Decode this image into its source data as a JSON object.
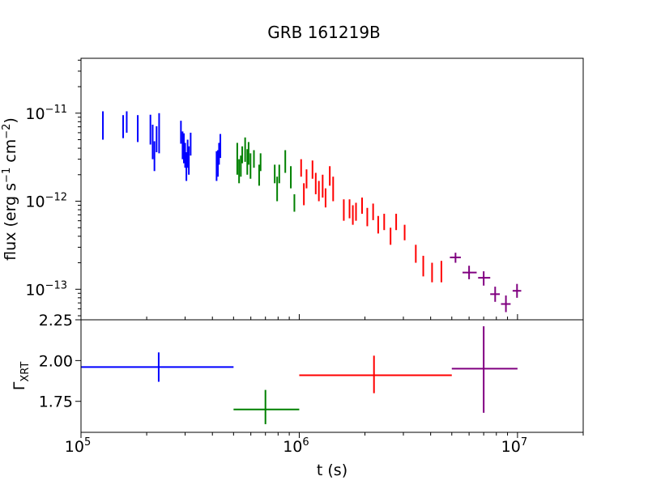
{
  "title": "GRB 161219B",
  "colors": {
    "seg1": "#0000ff",
    "seg2": "#008000",
    "seg3": "#ff0000",
    "seg4": "#800080",
    "axis": "#000000"
  },
  "chart_data": [
    {
      "type": "scatter",
      "panel": "top",
      "title": "GRB 161219B",
      "xlabel": "",
      "ylabel": "flux (erg s^-1 cm^-2)",
      "xscale": "log",
      "yscale": "log",
      "xlim": [
        100000,
        20000000
      ],
      "ylim": [
        4.5e-14,
        4.2e-11
      ],
      "ytick_labels": [
        "10^-11",
        "10^-12",
        "10^-13"
      ],
      "series": [
        {
          "color": "#0000ff",
          "points": [
            [
              126000,
              7.2e-12,
              5e-12,
              1.05e-11
            ],
            [
              156000,
              6.9e-12,
              5.2e-12,
              9.5e-12
            ],
            [
              162000,
              7.9e-12,
              6e-12,
              1.05e-11
            ],
            [
              182000,
              6.7e-12,
              4.7e-12,
              9.5e-12
            ],
            [
              208000,
              6.3e-12,
              4.4e-12,
              9.6e-12
            ],
            [
              213000,
              4.8e-12,
              3e-12,
              7.4e-12
            ],
            [
              217000,
              3.3e-12,
              2.2e-12,
              4.8e-12
            ],
            [
              222000,
              5e-12,
              3.6e-12,
              7.1e-12
            ],
            [
              228000,
              5.9e-12,
              3.5e-12,
              1e-11
            ],
            [
              287000,
              6e-12,
              4.5e-12,
              8.2e-12
            ],
            [
              292000,
              4.3e-12,
              3e-12,
              6.2e-12
            ],
            [
              296000,
              4e-12,
              2.7e-12,
              5.9e-12
            ],
            [
              300000,
              3.3e-12,
              2.4e-12,
              4.6e-12
            ],
            [
              304000,
              2.4e-12,
              1.7e-12,
              3.6e-12
            ],
            [
              308000,
              3.5e-12,
              2.4e-12,
              5e-12
            ],
            [
              312000,
              2.9e-12,
              2e-12,
              4.2e-12
            ],
            [
              318000,
              4.6e-12,
              3.3e-12,
              6e-12
            ],
            [
              418000,
              2.5e-12,
              1.7e-12,
              3.7e-12
            ],
            [
              424000,
              2.7e-12,
              1.9e-12,
              3.8e-12
            ],
            [
              429000,
              3.5e-12,
              2.6e-12,
              4.6e-12
            ],
            [
              435000,
              4.3e-12,
              3.1e-12,
              5.8e-12
            ]
          ]
        },
        {
          "color": "#008000",
          "points": [
            [
              520000,
              3e-12,
              2e-12,
              4.6e-12
            ],
            [
              530000,
              2.2e-12,
              1.6e-12,
              3e-12
            ],
            [
              540000,
              2.5e-12,
              1.9e-12,
              3.3e-12
            ],
            [
              548000,
              3.4e-12,
              2.7e-12,
              4.2e-12
            ],
            [
              565000,
              3.9e-12,
              2.8e-12,
              5.3e-12
            ],
            [
              578000,
              2.8e-12,
              2e-12,
              3.9e-12
            ],
            [
              586000,
              3.5e-12,
              2.6e-12,
              4.7e-12
            ],
            [
              598000,
              2.5e-12,
              1.8e-12,
              3.5e-12
            ],
            [
              620000,
              3e-12,
              2.4e-12,
              3.8e-12
            ],
            [
              655000,
              2e-12,
              1.5e-12,
              2.6e-12
            ],
            [
              665000,
              2.8e-12,
              2.2e-12,
              3.5e-12
            ],
            [
              772000,
              2e-12,
              1.6e-12,
              2.6e-12
            ],
            [
              792000,
              1.4e-12,
              1e-12,
              1.9e-12
            ],
            [
              810000,
              2e-12,
              1.6e-12,
              2.6e-12
            ],
            [
              863000,
              2.8e-12,
              2.1e-12,
              3.8e-12
            ],
            [
              915000,
              1.9e-12,
              1.4e-12,
              2.5e-12
            ],
            [
              950000,
              9.6e-13,
              7.6e-13,
              1.2e-12
            ]
          ]
        },
        {
          "color": "#ff0000",
          "points": [
            [
              1020000,
              2.4e-12,
              1.9e-12,
              3e-12
            ],
            [
              1050000,
              1.2e-12,
              9e-13,
              1.6e-12
            ],
            [
              1080000,
              1.8e-12,
              1.4e-12,
              2.3e-12
            ],
            [
              1150000,
              2.3e-12,
              1.8e-12,
              2.9e-12
            ],
            [
              1190000,
              1.6e-12,
              1.2e-12,
              2.1e-12
            ],
            [
              1230000,
              1.3e-12,
              1e-12,
              1.7e-12
            ],
            [
              1280000,
              1.5e-12,
              1.1e-12,
              2e-12
            ],
            [
              1320000,
              1.1e-12,
              8.5e-13,
              1.4e-12
            ],
            [
              1380000,
              1.9e-12,
              1.5e-12,
              2.5e-12
            ],
            [
              1430000,
              1.4e-12,
              1e-12,
              1.9e-12
            ],
            [
              1600000,
              8e-13,
              6e-13,
              1.05e-12
            ],
            [
              1700000,
              8.2e-13,
              6.4e-13,
              1.05e-12
            ],
            [
              1760000,
              7e-13,
              5.4e-13,
              9e-13
            ],
            [
              1820000,
              7.6e-13,
              6e-13,
              9.6e-13
            ],
            [
              1940000,
              9e-13,
              7.2e-13,
              1.1e-12
            ],
            [
              2050000,
              6.6e-13,
              5.2e-13,
              8.4e-13
            ],
            [
              2180000,
              7.6e-13,
              6.1e-13,
              9.4e-13
            ],
            [
              2300000,
              5.4e-13,
              4.3e-13,
              6.8e-13
            ],
            [
              2450000,
              5.8e-13,
              4.7e-13,
              7.2e-13
            ],
            [
              2620000,
              4e-13,
              3.2e-13,
              5e-13
            ],
            [
              2780000,
              5.8e-13,
              4.7e-13,
              7.2e-13
            ],
            [
              3040000,
              4.4e-13,
              3.6e-13,
              5.4e-13
            ],
            [
              3420000,
              2.6e-13,
              2e-13,
              3.2e-13
            ],
            [
              3700000,
              1.9e-13,
              1.4e-13,
              2.4e-13
            ],
            [
              4060000,
              1.55e-13,
              1.2e-13,
              2e-13
            ],
            [
              4480000,
              1.6e-13,
              1.2e-13,
              2.1e-13
            ]
          ]
        },
        {
          "color": "#800080",
          "points": [
            [
              5200000,
              2.3e-13,
              2e-13,
              2.6e-13,
              4900000,
              5500000
            ],
            [
              6000000,
              1.55e-13,
              1.3e-13,
              1.85e-13,
              5600000,
              6500000
            ],
            [
              7000000,
              1.35e-13,
              1.1e-13,
              1.6e-13,
              6600000,
              7500000
            ],
            [
              7900000,
              8.8e-14,
              7.2e-14,
              1.07e-13,
              7500000,
              8300000
            ],
            [
              8850000,
              6.8e-14,
              5.5e-14,
              8.5e-14,
              8400000,
              9300000
            ],
            [
              9950000,
              9.6e-14,
              8e-14,
              1.15e-13,
              9500000,
              10400000.0
            ]
          ]
        }
      ]
    },
    {
      "type": "scatter",
      "panel": "bottom",
      "xlabel": "t (s)",
      "ylabel": "Γ_XRT",
      "xscale": "log",
      "xlim": [
        100000,
        20000000
      ],
      "ylim": [
        1.56,
        2.25
      ],
      "yticks": [
        "1.75",
        "2.00",
        "2.25"
      ],
      "xtick_labels": [
        "10^5",
        "10^6",
        "10^7"
      ],
      "series": [
        {
          "color": "#0000ff",
          "x": 227000,
          "y": 1.96,
          "xerr": [
            100000,
            500000
          ],
          "yerr": [
            1.87,
            2.05
          ]
        },
        {
          "color": "#008000",
          "x": 700000,
          "y": 1.7,
          "xerr": [
            500000,
            1000000
          ],
          "yerr": [
            1.61,
            1.82
          ]
        },
        {
          "color": "#ff0000",
          "x": 2200000,
          "y": 1.91,
          "xerr": [
            1000000,
            5000000
          ],
          "yerr": [
            1.8,
            2.03
          ]
        },
        {
          "color": "#800080",
          "x": 7000000,
          "y": 1.95,
          "xerr": [
            5000000,
            10000000
          ],
          "yerr": [
            1.68,
            2.21
          ]
        }
      ]
    }
  ]
}
